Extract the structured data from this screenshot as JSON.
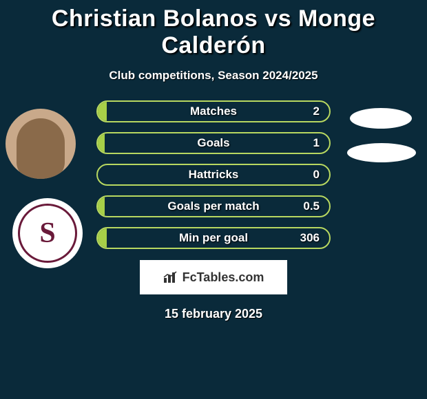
{
  "title": "Christian Bolanos vs Monge Calderón",
  "subtitle": "Club competitions, Season 2024/2025",
  "date": "15 february 2025",
  "watermark": "FcTables.com",
  "colors": {
    "background": "#0a2a3a",
    "bar_border": "#b8d860",
    "bar_fill": "#a8d048",
    "text": "#ffffff"
  },
  "stats": [
    {
      "label": "Matches",
      "value": "2",
      "fill_pct": 4
    },
    {
      "label": "Goals",
      "value": "1",
      "fill_pct": 3
    },
    {
      "label": "Hattricks",
      "value": "0",
      "fill_pct": 0
    },
    {
      "label": "Goals per match",
      "value": "0.5",
      "fill_pct": 3
    },
    {
      "label": "Min per goal",
      "value": "306",
      "fill_pct": 4
    }
  ]
}
